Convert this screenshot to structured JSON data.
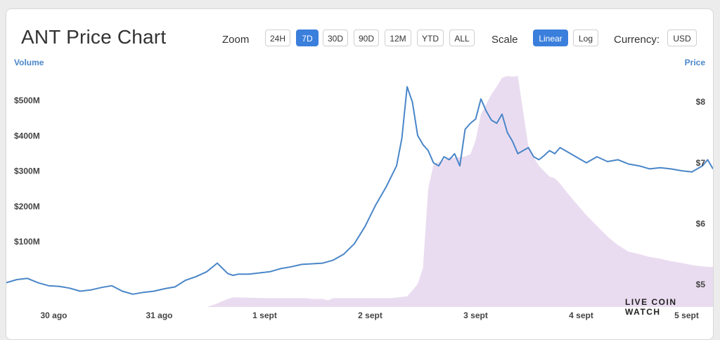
{
  "header": {
    "title": "ANT Price Chart",
    "zoom_label": "Zoom",
    "zoom_options": [
      "24H",
      "7D",
      "30D",
      "90D",
      "12M",
      "YTD",
      "ALL"
    ],
    "zoom_selected": "7D",
    "scale_label": "Scale",
    "scale_options": [
      "Linear",
      "Log"
    ],
    "scale_selected": "Linear",
    "currency_label": "Currency:",
    "currency_value": "USD"
  },
  "watermark": "LIVE COIN WATCH",
  "colors": {
    "price_line": "#4a86c8",
    "volume_area": "#eadcf0",
    "accent": "#3b7fdc"
  },
  "chart_data": {
    "type": "line",
    "title": "ANT Price Chart",
    "x_ticks": [
      "30 ago",
      "31 ago",
      "1 sept",
      "2 sept",
      "3 sept",
      "4 sept",
      "5 sept"
    ],
    "x_tick_days": [
      0,
      1,
      2,
      3,
      4,
      5,
      6
    ],
    "xlim": [
      -0.45,
      6.25
    ],
    "left_axis": {
      "label": "Volume",
      "ticks": [
        "$100M",
        "$200M",
        "$300M",
        "$400M",
        "$500M"
      ],
      "tick_values": [
        100,
        200,
        300,
        400,
        500
      ],
      "ylim": [
        -85,
        610
      ]
    },
    "right_axis": {
      "label": "Price",
      "ticks": [
        "$5",
        "$6",
        "$7",
        "$8"
      ],
      "tick_values": [
        5,
        6,
        7,
        8
      ],
      "ylim": [
        4.63,
        8.66
      ]
    },
    "grid": false,
    "series": [
      {
        "axis": "right",
        "kind": "line",
        "x": [
          -0.45,
          -0.35,
          -0.25,
          -0.15,
          -0.05,
          0.05,
          0.15,
          0.25,
          0.35,
          0.45,
          0.55,
          0.65,
          0.75,
          0.85,
          0.95,
          1.05,
          1.15,
          1.25,
          1.35,
          1.45,
          1.55,
          1.65,
          1.7,
          1.75,
          1.85,
          1.95,
          2.05,
          2.15,
          2.25,
          2.35,
          2.45,
          2.55,
          2.65,
          2.75,
          2.85,
          2.95,
          3.05,
          3.15,
          3.25,
          3.3,
          3.35,
          3.4,
          3.45,
          3.5,
          3.55,
          3.6,
          3.65,
          3.7,
          3.75,
          3.8,
          3.85,
          3.9,
          3.95,
          4.0,
          4.05,
          4.1,
          4.15,
          4.2,
          4.25,
          4.3,
          4.35,
          4.4,
          4.45,
          4.5,
          4.55,
          4.6,
          4.65,
          4.7,
          4.75,
          4.8,
          4.85,
          4.95,
          5.05,
          5.15,
          5.25,
          5.35,
          5.45,
          5.55,
          5.65,
          5.75,
          5.85,
          5.95,
          6.05,
          6.15,
          6.2,
          6.25
        ],
        "y": [
          5.03,
          5.08,
          5.1,
          5.03,
          4.98,
          4.97,
          4.94,
          4.89,
          4.91,
          4.95,
          4.98,
          4.89,
          4.84,
          4.87,
          4.89,
          4.93,
          4.96,
          5.07,
          5.13,
          5.21,
          5.35,
          5.18,
          5.15,
          5.17,
          5.17,
          5.19,
          5.21,
          5.26,
          5.29,
          5.33,
          5.34,
          5.35,
          5.4,
          5.5,
          5.67,
          5.95,
          6.3,
          6.6,
          6.95,
          7.4,
          8.25,
          8.0,
          7.45,
          7.3,
          7.2,
          7.0,
          6.95,
          7.1,
          7.05,
          7.15,
          6.95,
          7.55,
          7.65,
          7.72,
          8.05,
          7.85,
          7.7,
          7.65,
          7.8,
          7.5,
          7.35,
          7.15,
          7.2,
          7.25,
          7.1,
          7.05,
          7.12,
          7.2,
          7.15,
          7.25,
          7.2,
          7.1,
          7.0,
          7.1,
          7.02,
          7.05,
          6.98,
          6.95,
          6.9,
          6.92,
          6.9,
          6.87,
          6.85,
          6.95,
          7.05,
          6.9
        ],
        "name": ""
      },
      {
        "axis": "left",
        "kind": "area",
        "x": [
          -0.45,
          1.2,
          1.45,
          1.55,
          1.6,
          1.65,
          1.7,
          1.75,
          2.05,
          2.25,
          2.4,
          2.45,
          2.5,
          2.55,
          2.6,
          2.65,
          2.7,
          2.75,
          2.8,
          3.0,
          3.2,
          3.35,
          3.4,
          3.45,
          3.5,
          3.55,
          3.6,
          3.65,
          3.7,
          3.75,
          3.8,
          3.85,
          3.9,
          3.95,
          4.0,
          4.05,
          4.1,
          4.15,
          4.2,
          4.25,
          4.3,
          4.35,
          4.4,
          4.45,
          4.5,
          4.55,
          4.6,
          4.65,
          4.7,
          4.75,
          4.8,
          4.85,
          4.95,
          5.05,
          5.15,
          5.25,
          5.35,
          5.45,
          5.55,
          5.65,
          5.75,
          5.85,
          5.95,
          6.05,
          6.15,
          6.25
        ],
        "y": [
          -85,
          -85,
          -85,
          -75,
          -68,
          -62,
          -58,
          -58,
          -60,
          -60,
          -60,
          -62,
          -62,
          -62,
          -66,
          -60,
          -60,
          -60,
          -60,
          -60,
          -60,
          -55,
          -38,
          -20,
          25,
          250,
          318,
          326,
          332,
          340,
          338,
          340,
          342,
          348,
          388,
          462,
          490,
          518,
          540,
          565,
          570,
          568,
          570,
          470,
          370,
          340,
          315,
          300,
          285,
          280,
          265,
          245,
          210,
          175,
          145,
          115,
          90,
          72,
          65,
          57,
          52,
          45,
          40,
          34,
          30,
          28
        ],
        "name": ""
      }
    ]
  }
}
